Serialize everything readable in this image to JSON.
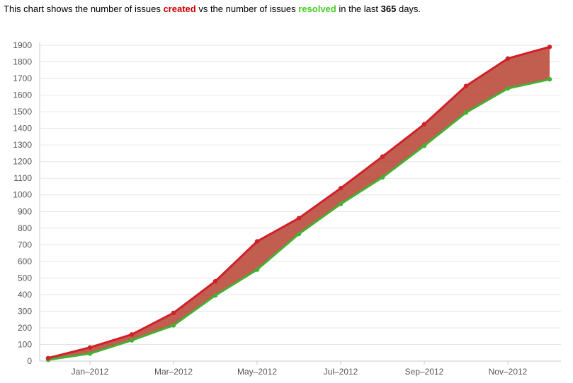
{
  "caption": {
    "prefix": "This chart shows the number of issues",
    "created_word": "created",
    "middle": "vs the number of issues",
    "resolved_word": "resolved",
    "suffix_before": "in the last",
    "days_value": "365",
    "suffix_after": "days."
  },
  "colors": {
    "created": "#d0202a",
    "resolved": "#44b034",
    "fill": "#b33a28",
    "grid": "#e6e6e6"
  },
  "chart_data": {
    "type": "area",
    "title": "",
    "xlabel": "",
    "ylabel": "",
    "ylim": [
      0,
      1900
    ],
    "yticks": [
      0,
      100,
      200,
      300,
      400,
      500,
      600,
      700,
      800,
      900,
      1000,
      1100,
      1200,
      1300,
      1400,
      1500,
      1600,
      1700,
      1800,
      1900
    ],
    "x_tick_labels": [
      "Jan–2012",
      "Mar–2012",
      "May–2012",
      "Jul–2012",
      "Sep–2012",
      "Nov–2012"
    ],
    "x_tick_point_index": [
      1,
      3,
      5,
      7,
      9,
      11
    ],
    "grid": true,
    "series": [
      {
        "key": "created",
        "values": [
          18,
          82,
          160,
          290,
          480,
          720,
          860,
          1040,
          1230,
          1425,
          1655,
          1820,
          1890
        ]
      },
      {
        "key": "resolved",
        "values": [
          8,
          45,
          125,
          215,
          395,
          550,
          765,
          945,
          1105,
          1295,
          1495,
          1640,
          1695
        ]
      }
    ]
  }
}
